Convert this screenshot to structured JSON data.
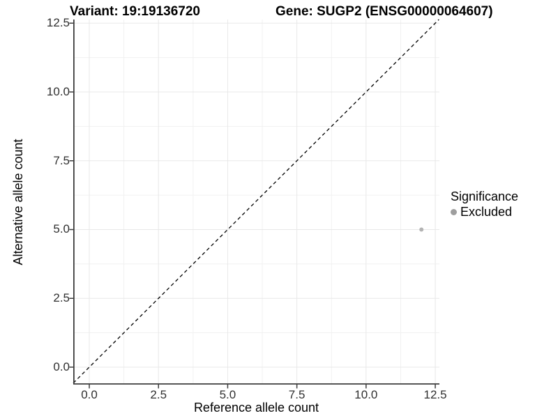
{
  "chart_data": {
    "type": "scatter",
    "title_left": "Variant: 19:19136720",
    "title_right": "Gene: SUGP2 (ENSG00000064607)",
    "xlabel": "Reference allele count",
    "ylabel": "Alternative allele count",
    "x_ticks": [
      0,
      2.5,
      5,
      7.5,
      10,
      12.5
    ],
    "x_tick_labels": [
      "0.0",
      "2.5",
      "5.0",
      "7.5",
      "10.0",
      "12.5"
    ],
    "y_ticks": [
      0,
      2.5,
      5,
      7.5,
      10,
      12.5
    ],
    "y_tick_labels": [
      "0.0",
      "2.5",
      "5.0",
      "7.5",
      "10.0",
      "12.5"
    ],
    "xlim": [
      -0.58,
      12.65
    ],
    "ylim": [
      -0.633,
      12.633
    ],
    "grid": "major+minor",
    "grid_on": true,
    "reference_line": {
      "equation": "y = x",
      "style": "dashed",
      "color": "#000000"
    },
    "points": [
      {
        "x": 12,
        "y": 5,
        "series": "Excluded",
        "color": "#b3b3b3"
      }
    ],
    "legend": {
      "title": "Significance",
      "position": "right",
      "items": [
        {
          "label": "Excluded",
          "color": "#9e9e9e",
          "marker": "circle"
        }
      ]
    },
    "colors": {
      "grid_major": "#e8e8e8",
      "grid_minor": "#f1f1f1",
      "axis_line": "#3c3c3c",
      "tick_label": "#303030"
    }
  }
}
